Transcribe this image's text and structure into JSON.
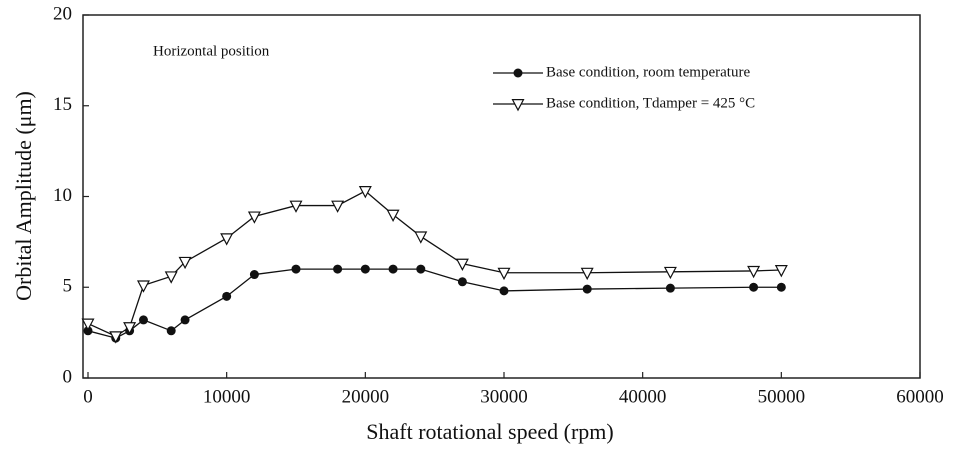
{
  "chart_data": {
    "type": "line",
    "annotation": "Horizontal position",
    "xlabel": "Shaft rotational speed (rpm)",
    "ylabel": "Orbital Amplitude (μm)",
    "x": [
      0,
      2000,
      3000,
      4000,
      6000,
      7000,
      10000,
      12000,
      15000,
      18000,
      20000,
      22000,
      24000,
      27000,
      30000,
      36000,
      42000,
      48000,
      50000
    ],
    "series": [
      {
        "name": "Base condition, room temperature",
        "color": "#111111",
        "marker": "circle",
        "values": [
          2.6,
          2.2,
          2.6,
          3.2,
          2.6,
          3.2,
          4.5,
          5.7,
          6.0,
          6.0,
          6.0,
          6.0,
          6.0,
          5.3,
          4.8,
          4.9,
          4.95,
          5.0,
          5.0
        ]
      },
      {
        "name": "Base condition, Tdamper = 425 °C",
        "color": "#111111",
        "marker": "triangle-down",
        "values": [
          3.0,
          2.3,
          2.8,
          5.1,
          5.6,
          6.4,
          7.7,
          8.9,
          9.5,
          9.5,
          10.3,
          9.0,
          7.8,
          6.3,
          5.8,
          5.8,
          5.85,
          5.9,
          5.95
        ]
      }
    ],
    "xlim": [
      0,
      60000
    ],
    "xticks": [
      0,
      10000,
      20000,
      30000,
      40000,
      50000,
      60000
    ],
    "ylim": [
      0,
      20
    ],
    "yticks": [
      0,
      5,
      10,
      15,
      20
    ],
    "grid": false
  }
}
